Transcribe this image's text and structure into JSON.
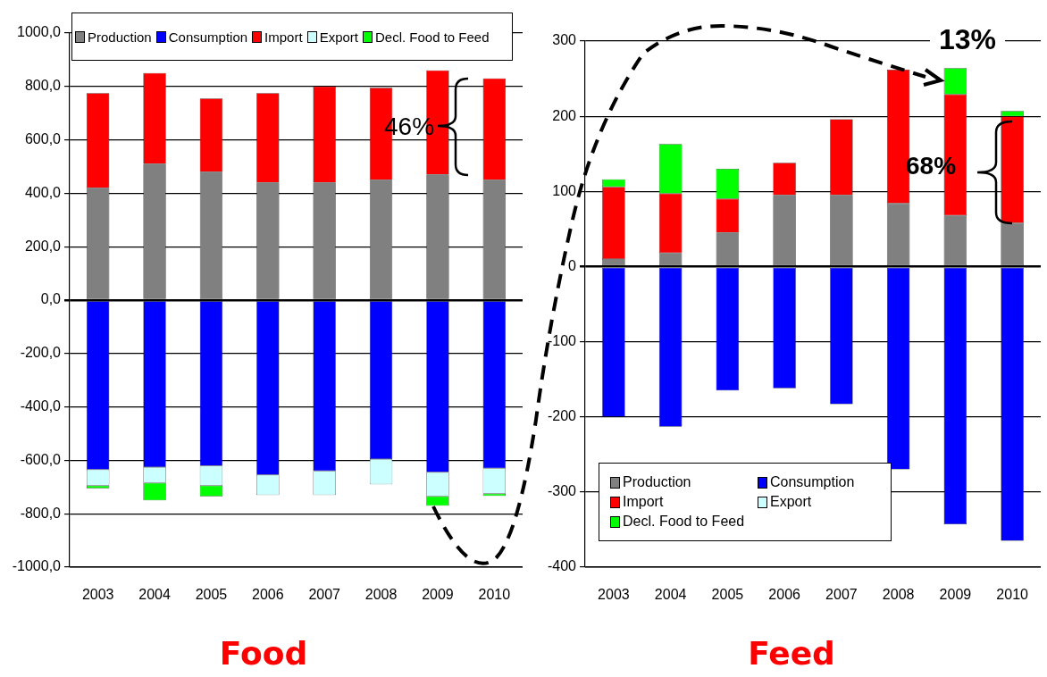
{
  "chart_data": [
    {
      "type": "bar",
      "title": "Food",
      "categories": [
        "2003",
        "2004",
        "2005",
        "2006",
        "2007",
        "2008",
        "2009",
        "2010"
      ],
      "stacked": true,
      "series": [
        {
          "name": "Production",
          "color": "#808080",
          "values": [
            420,
            510,
            480,
            440,
            440,
            450,
            470,
            450
          ]
        },
        {
          "name": "Consumption",
          "color": "#0000ff",
          "values": [
            -635,
            -625,
            -620,
            -655,
            -640,
            -595,
            -645,
            -630
          ]
        },
        {
          "name": "Import",
          "color": "#ff0000",
          "values": [
            355,
            340,
            275,
            335,
            360,
            345,
            390,
            380
          ]
        },
        {
          "name": "Export",
          "color": "#ccffff",
          "values": [
            -60,
            -60,
            -75,
            -75,
            -90,
            -95,
            -90,
            -95
          ]
        },
        {
          "name": "Decl. Food to Feed",
          "color": "#00ff00",
          "values": [
            -10,
            -65,
            -40,
            0,
            0,
            0,
            -35,
            -8
          ]
        }
      ],
      "ylim": [
        -1000,
        1000
      ],
      "yticks": [
        {
          "value": -1000,
          "label": "-1000,0"
        },
        {
          "value": -800,
          "label": "-800,0"
        },
        {
          "value": -600,
          "label": "-600,0"
        },
        {
          "value": -400,
          "label": "-400,0"
        },
        {
          "value": -200,
          "label": "-200,0"
        },
        {
          "value": 0,
          "label": "0,0"
        },
        {
          "value": 200,
          "label": "200,0"
        },
        {
          "value": 400,
          "label": "400,0"
        },
        {
          "value": 600,
          "label": "600,0"
        },
        {
          "value": 800,
          "label": "800,0"
        },
        {
          "value": 1000,
          "label": "1000,0"
        }
      ],
      "grid": "y",
      "legend": "top",
      "annotations": [
        "46%"
      ]
    },
    {
      "type": "bar",
      "title": "Feed",
      "categories": [
        "2003",
        "2004",
        "2005",
        "2006",
        "2007",
        "2008",
        "2009",
        "2010"
      ],
      "stacked": true,
      "series": [
        {
          "name": "Production",
          "color": "#808080",
          "values": [
            10,
            18,
            45,
            95,
            95,
            84,
            68,
            58
          ]
        },
        {
          "name": "Consumption",
          "color": "#0000ff",
          "values": [
            -200,
            -213,
            -165,
            -162,
            -183,
            -270,
            -343,
            -365
          ]
        },
        {
          "name": "Import",
          "color": "#ff0000",
          "values": [
            96,
            79,
            45,
            43,
            101,
            178,
            161,
            142
          ]
        },
        {
          "name": "Export",
          "color": "#ccffff",
          "values": [
            0,
            0,
            0,
            0,
            0,
            0,
            0,
            0
          ]
        },
        {
          "name": "Decl. Food to Feed",
          "color": "#00ff00",
          "values": [
            10,
            66,
            40,
            0,
            0,
            0,
            35,
            7
          ]
        }
      ],
      "ylim": [
        -400,
        300
      ],
      "yticks": [
        -400,
        -300,
        -200,
        -100,
        0,
        100,
        200,
        300
      ],
      "grid": "y",
      "legend": "bottom left",
      "annotations": [
        "68%",
        "13%"
      ]
    }
  ]
}
